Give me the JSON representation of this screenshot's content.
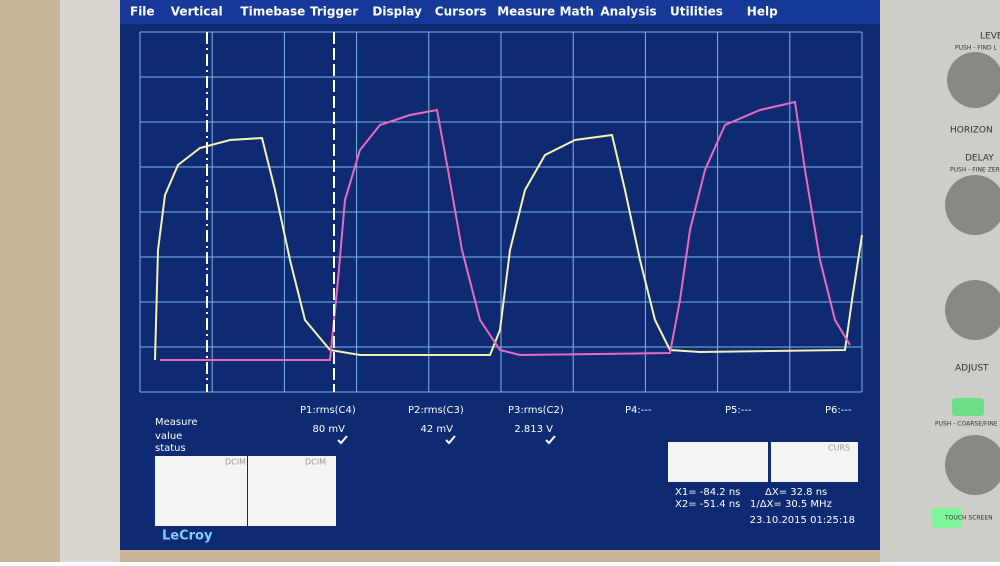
{
  "menu": [
    "File",
    "Vertical",
    "Timebase",
    "Trigger",
    "Display",
    "Cursors",
    "Measure",
    "Math",
    "Analysis",
    "Utilities",
    "Help"
  ],
  "measure": {
    "header": "Measure",
    "rows": [
      "value",
      "status"
    ],
    "params": [
      {
        "name": "P1:rms(C4)",
        "value": "80 mV"
      },
      {
        "name": "P2:rms(C3)",
        "value": "42 mV"
      },
      {
        "name": "P3:rms(C2)",
        "value": "2.813 V"
      },
      {
        "name": "P4:---"
      },
      {
        "name": "P5:---"
      },
      {
        "name": "P6:---"
      }
    ]
  },
  "boxes": [
    "DCIM",
    "DCIM"
  ],
  "cursor": {
    "label": "CURS",
    "x1": "X1= -84.2 ns",
    "dx": "ΔX= 32.8 ns",
    "x2": "X2= -51.4 ns",
    "inv": "1/ΔX= 30.5 MHz"
  },
  "timestamp": "23.10.2015 01:25:18",
  "brand": "LeCroy",
  "panel": {
    "level": "LEVEL",
    "level_sub": "PUSH - FIND L",
    "horizontal": "HORIZON",
    "delay": "DELAY",
    "delay_sub": "PUSH - FINE ZERO",
    "adjust": "ADJUST",
    "adjust_sub": "PUSH - COARSE/FINE",
    "touch": "TOUCH SCREEN"
  }
}
